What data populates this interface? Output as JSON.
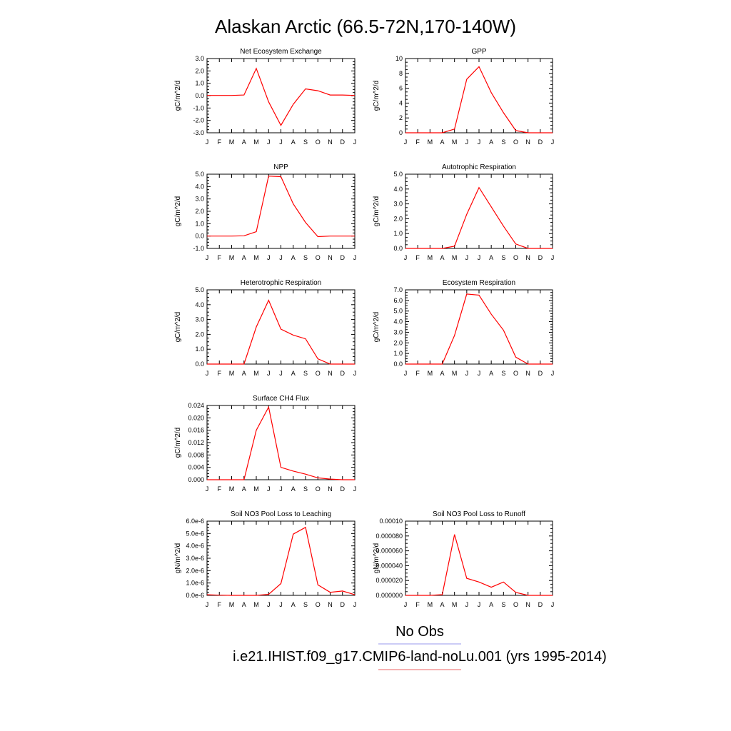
{
  "figure": {
    "title": "Alaskan Arctic (66.5-72N,170-140W)",
    "legend": [
      {
        "label": "No Obs",
        "color": "#9999ee"
      },
      {
        "label": "i.e21.IHIST.f09_g17.CMIP6-land-noLu.001 (yrs 1995-2014)",
        "color": "#ee6666"
      }
    ]
  },
  "chart_data": [
    {
      "type": "line",
      "title": "Net Ecosystem Exchange",
      "ylabel": "gC/m^2/d",
      "ylim": [
        -3.0,
        3.0
      ],
      "yticks": [
        "-3.0",
        "-2.0",
        "-1.0",
        "0.0",
        "1.0",
        "2.0",
        "3.0"
      ],
      "categories": [
        "J",
        "F",
        "M",
        "A",
        "M",
        "J",
        "J",
        "A",
        "S",
        "O",
        "N",
        "D",
        "J"
      ],
      "series": [
        {
          "color": "#ff0000",
          "values": [
            0.02,
            0.02,
            0.02,
            0.05,
            2.2,
            -0.5,
            -2.4,
            -0.7,
            0.55,
            0.4,
            0.05,
            0.05,
            0.02
          ]
        }
      ]
    },
    {
      "type": "line",
      "title": "GPP",
      "ylabel": "gC/m^2/d",
      "ylim": [
        0,
        10
      ],
      "yticks": [
        "0",
        "2",
        "4",
        "6",
        "8",
        "10"
      ],
      "categories": [
        "J",
        "F",
        "M",
        "A",
        "M",
        "J",
        "J",
        "A",
        "S",
        "O",
        "N",
        "D",
        "J"
      ],
      "series": [
        {
          "color": "#ff0000",
          "values": [
            0,
            0,
            0,
            0,
            0.5,
            7.2,
            8.9,
            5.4,
            2.7,
            0.3,
            0,
            0,
            0
          ]
        }
      ]
    },
    {
      "type": "line",
      "title": "NPP",
      "ylabel": "gC/m^2/d",
      "ylim": [
        -1.0,
        5.0
      ],
      "yticks": [
        "-1.0",
        "0.0",
        "1.0",
        "2.0",
        "3.0",
        "4.0",
        "5.0"
      ],
      "categories": [
        "J",
        "F",
        "M",
        "A",
        "M",
        "J",
        "J",
        "A",
        "S",
        "O",
        "N",
        "D",
        "J"
      ],
      "series": [
        {
          "color": "#ff0000",
          "values": [
            0,
            0,
            0,
            0.02,
            0.35,
            4.85,
            4.8,
            2.6,
            1.1,
            -0.05,
            0,
            0,
            0
          ]
        }
      ]
    },
    {
      "type": "line",
      "title": "Autotrophic Respiration",
      "ylabel": "gC/m^2/d",
      "ylim": [
        0.0,
        5.0
      ],
      "yticks": [
        "0.0",
        "1.0",
        "2.0",
        "3.0",
        "4.0",
        "5.0"
      ],
      "categories": [
        "J",
        "F",
        "M",
        "A",
        "M",
        "J",
        "J",
        "A",
        "S",
        "O",
        "N",
        "D",
        "J"
      ],
      "series": [
        {
          "color": "#ff0000",
          "values": [
            0,
            0,
            0,
            0,
            0.15,
            2.3,
            4.1,
            2.8,
            1.5,
            0.3,
            0,
            0,
            0
          ]
        }
      ]
    },
    {
      "type": "line",
      "title": "Heterotrophic Respiration",
      "ylabel": "gC/m^2/d",
      "ylim": [
        0.0,
        5.0
      ],
      "yticks": [
        "0.0",
        "1.0",
        "2.0",
        "3.0",
        "4.0",
        "5.0"
      ],
      "categories": [
        "J",
        "F",
        "M",
        "A",
        "M",
        "J",
        "J",
        "A",
        "S",
        "O",
        "N",
        "D",
        "J"
      ],
      "series": [
        {
          "color": "#ff0000",
          "values": [
            0,
            0,
            0,
            0,
            2.5,
            4.3,
            2.35,
            1.95,
            1.7,
            0.35,
            0,
            0,
            0
          ]
        }
      ]
    },
    {
      "type": "line",
      "title": "Ecosystem Respiration",
      "ylabel": "gC/m^2/d",
      "ylim": [
        0.0,
        7.0
      ],
      "yticks": [
        "0.0",
        "1.0",
        "2.0",
        "3.0",
        "4.0",
        "5.0",
        "6.0",
        "7.0"
      ],
      "categories": [
        "J",
        "F",
        "M",
        "A",
        "M",
        "J",
        "J",
        "A",
        "S",
        "O",
        "N",
        "D",
        "J"
      ],
      "series": [
        {
          "color": "#ff0000",
          "values": [
            0,
            0,
            0,
            0,
            2.7,
            6.6,
            6.5,
            4.7,
            3.2,
            0.65,
            0,
            0,
            0
          ]
        }
      ]
    },
    {
      "type": "line",
      "title": "Surface CH4 Flux",
      "ylabel": "gC/m^2/d",
      "ylim": [
        0.0,
        0.024
      ],
      "yticks": [
        "0.000",
        "0.004",
        "0.008",
        "0.012",
        "0.016",
        "0.020",
        "0.024"
      ],
      "categories": [
        "J",
        "F",
        "M",
        "A",
        "M",
        "J",
        "J",
        "A",
        "S",
        "O",
        "N",
        "D",
        "J"
      ],
      "series": [
        {
          "color": "#ff0000",
          "values": [
            0,
            0,
            0,
            0,
            0.016,
            0.0235,
            0.004,
            0.0028,
            0.0018,
            0.0006,
            0.0002,
            0,
            0
          ]
        }
      ]
    },
    {
      "type": "line",
      "title": "Soil NO3 Pool Loss to Leaching",
      "ylabel": "gN/m^2/d",
      "ylim": [
        0.0,
        6e-06
      ],
      "yticks": [
        "0.0e-6",
        "1.0e-6",
        "2.0e-6",
        "3.0e-6",
        "4.0e-6",
        "5.0e-6",
        "6.0e-6"
      ],
      "categories": [
        "J",
        "F",
        "M",
        "A",
        "M",
        "J",
        "J",
        "A",
        "S",
        "O",
        "N",
        "D",
        "J"
      ],
      "series": [
        {
          "color": "#ff0000",
          "values": [
            5e-08,
            2e-08,
            0,
            0,
            0,
            8e-08,
            9.5e-07,
            4.95e-06,
            5.5e-06,
            8.5e-07,
            2.5e-07,
            3.5e-07,
            5e-08
          ]
        }
      ]
    },
    {
      "type": "line",
      "title": "Soil NO3 Pool Loss to Runoff",
      "ylabel": "gN/m^2/d",
      "ylim": [
        0.0,
        0.0001
      ],
      "yticks": [
        "0.000000",
        "0.000020",
        "0.000040",
        "0.000060",
        "0.000080",
        "0.00010"
      ],
      "categories": [
        "J",
        "F",
        "M",
        "A",
        "M",
        "J",
        "J",
        "A",
        "S",
        "O",
        "N",
        "D",
        "J"
      ],
      "series": [
        {
          "color": "#ff0000",
          "values": [
            0,
            0,
            0,
            1e-06,
            8.2e-05,
            2.3e-05,
            1.8e-05,
            1.1e-05,
            1.8e-05,
            4e-06,
            0,
            0,
            0
          ]
        }
      ]
    }
  ]
}
